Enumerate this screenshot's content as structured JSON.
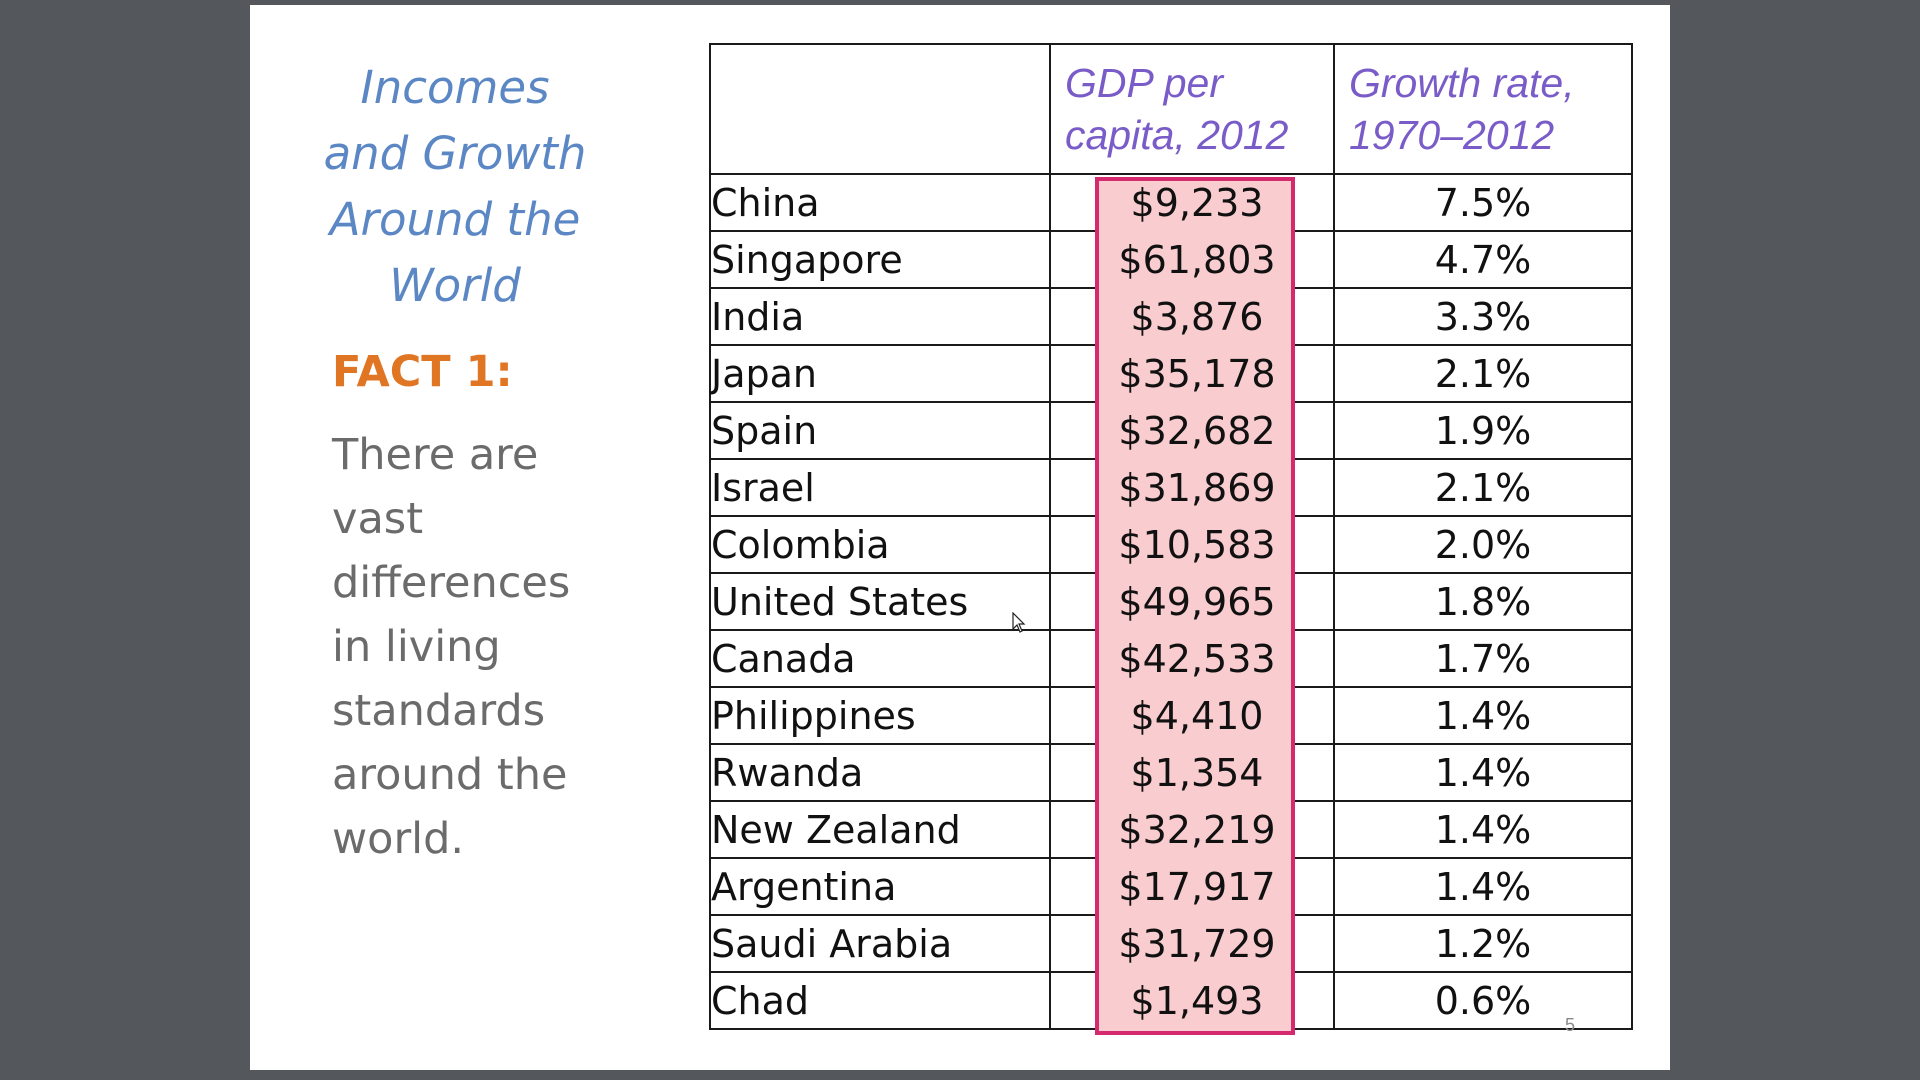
{
  "slide": {
    "title_lines": [
      "Incomes",
      "and Growth",
      "Around the",
      "World"
    ],
    "fact_label": "FACT 1:",
    "fact_lines": [
      "There are",
      "vast",
      "differences",
      "in living",
      "standards",
      "around the",
      "world."
    ],
    "slide_number": "5"
  },
  "table": {
    "headers": {
      "country": "",
      "gdp": "GDP per capita, 2012",
      "growth": "Growth rate, 1970–2012"
    },
    "rows": [
      {
        "country": "China",
        "gdp": "$9,233",
        "growth": "7.5%"
      },
      {
        "country": "Singapore",
        "gdp": "$61,803",
        "growth": "4.7%"
      },
      {
        "country": "India",
        "gdp": "$3,876",
        "growth": "3.3%"
      },
      {
        "country": "Japan",
        "gdp": "$35,178",
        "growth": "2.1%"
      },
      {
        "country": "Spain",
        "gdp": "$32,682",
        "growth": "1.9%"
      },
      {
        "country": "Israel",
        "gdp": "$31,869",
        "growth": "2.1%"
      },
      {
        "country": "Colombia",
        "gdp": "$10,583",
        "growth": "2.0%"
      },
      {
        "country": "United States",
        "gdp": "$49,965",
        "growth": "1.8%"
      },
      {
        "country": "Canada",
        "gdp": "$42,533",
        "growth": "1.7%"
      },
      {
        "country": "Philippines",
        "gdp": "$4,410",
        "growth": "1.4%"
      },
      {
        "country": "Rwanda",
        "gdp": "$1,354",
        "growth": "1.4%"
      },
      {
        "country": "New Zealand",
        "gdp": "$32,219",
        "growth": "1.4%"
      },
      {
        "country": "Argentina",
        "gdp": "$17,917",
        "growth": "1.4%"
      },
      {
        "country": "Saudi Arabia",
        "gdp": "$31,729",
        "growth": "1.2%"
      },
      {
        "country": "Chad",
        "gdp": "$1,493",
        "growth": "0.6%"
      }
    ]
  },
  "colors": {
    "title": "#5b87c4",
    "fact_label": "#e07623",
    "header_text": "#7a5cc9",
    "highlight_fill": "#f9cdd0",
    "highlight_border": "#d62a6f"
  }
}
